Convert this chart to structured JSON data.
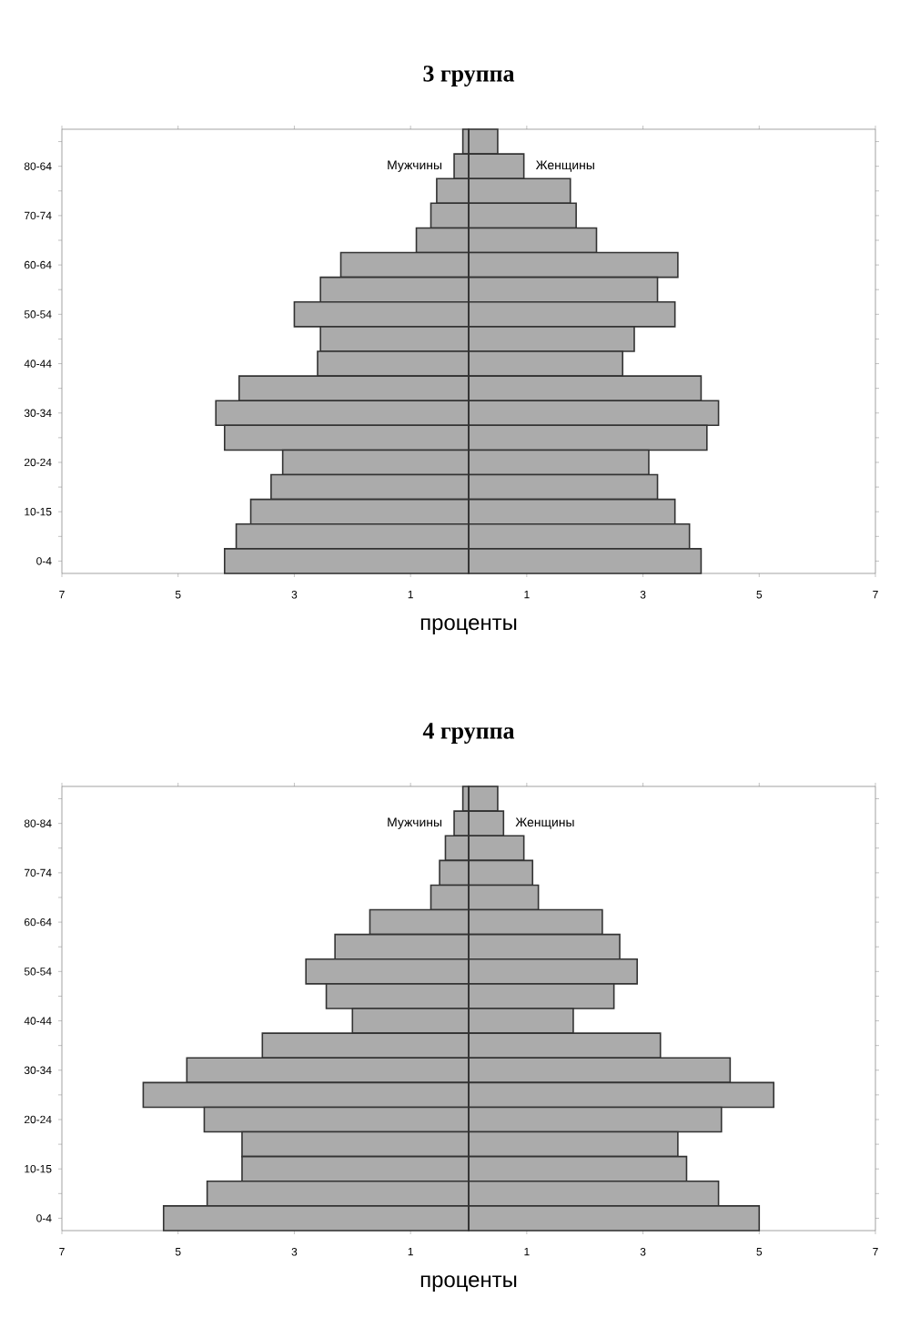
{
  "chart_data": [
    {
      "type": "bar",
      "orientation": "horizontal",
      "stacked": true,
      "title": "3 группа",
      "xlabel": "проценты",
      "categories": [
        null,
        "80-64",
        null,
        "70-74",
        null,
        "60-64",
        null,
        "50-54",
        null,
        "40-44",
        null,
        "30-34",
        null,
        "20-24",
        null,
        "10-15",
        null,
        "0-4"
      ],
      "series": [
        {
          "name": "Мужчины",
          "color": "#ababab",
          "values": [
            -0.1,
            -0.25,
            -0.55,
            -0.65,
            -0.9,
            -2.2,
            -2.55,
            -3.0,
            -2.55,
            -2.6,
            -3.95,
            -4.35,
            -4.2,
            -3.2,
            -3.4,
            -3.75,
            -4.0,
            -4.2
          ]
        },
        {
          "name": "Женщины",
          "color": "#ababab",
          "values": [
            0.5,
            0.95,
            1.75,
            1.85,
            2.2,
            3.6,
            3.25,
            3.55,
            2.85,
            2.65,
            4.0,
            4.3,
            4.1,
            3.1,
            3.25,
            3.55,
            3.8,
            4.0
          ]
        }
      ],
      "xlim": [
        -7,
        7
      ],
      "xticks": [
        {
          "value": -7,
          "label": "7"
        },
        {
          "value": -5,
          "label": "5"
        },
        {
          "value": -3,
          "label": "3"
        },
        {
          "value": -1,
          "label": "1"
        },
        1,
        3,
        5,
        7
      ]
    },
    {
      "type": "bar",
      "orientation": "horizontal",
      "stacked": true,
      "title": "4 группа",
      "xlabel": "проценты",
      "categories": [
        null,
        "80-84",
        null,
        "70-74",
        null,
        "60-64",
        null,
        "50-54",
        null,
        "40-44",
        null,
        "30-34",
        null,
        "20-24",
        null,
        "10-15",
        null,
        "0-4"
      ],
      "series": [
        {
          "name": "Мужчины",
          "color": "#ababab",
          "values": [
            -0.1,
            -0.25,
            -0.4,
            -0.5,
            -0.65,
            -1.7,
            -2.3,
            -2.8,
            -2.45,
            -2.0,
            -3.55,
            -4.85,
            -5.6,
            -4.55,
            -3.9,
            -3.9,
            -4.5,
            -5.25
          ]
        },
        {
          "name": "Женщины",
          "color": "#ababab",
          "values": [
            0.5,
            0.6,
            0.95,
            1.1,
            1.2,
            2.3,
            2.6,
            2.9,
            2.5,
            1.8,
            3.3,
            4.5,
            5.25,
            4.35,
            3.6,
            3.75,
            4.3,
            5.0
          ]
        }
      ],
      "xlim": [
        -7,
        7
      ],
      "xticks": [
        {
          "value": -7,
          "label": "7"
        },
        {
          "value": -5,
          "label": "5"
        },
        {
          "value": -3,
          "label": "3"
        },
        {
          "value": -1,
          "label": "1"
        },
        1,
        3,
        5,
        7
      ]
    }
  ]
}
